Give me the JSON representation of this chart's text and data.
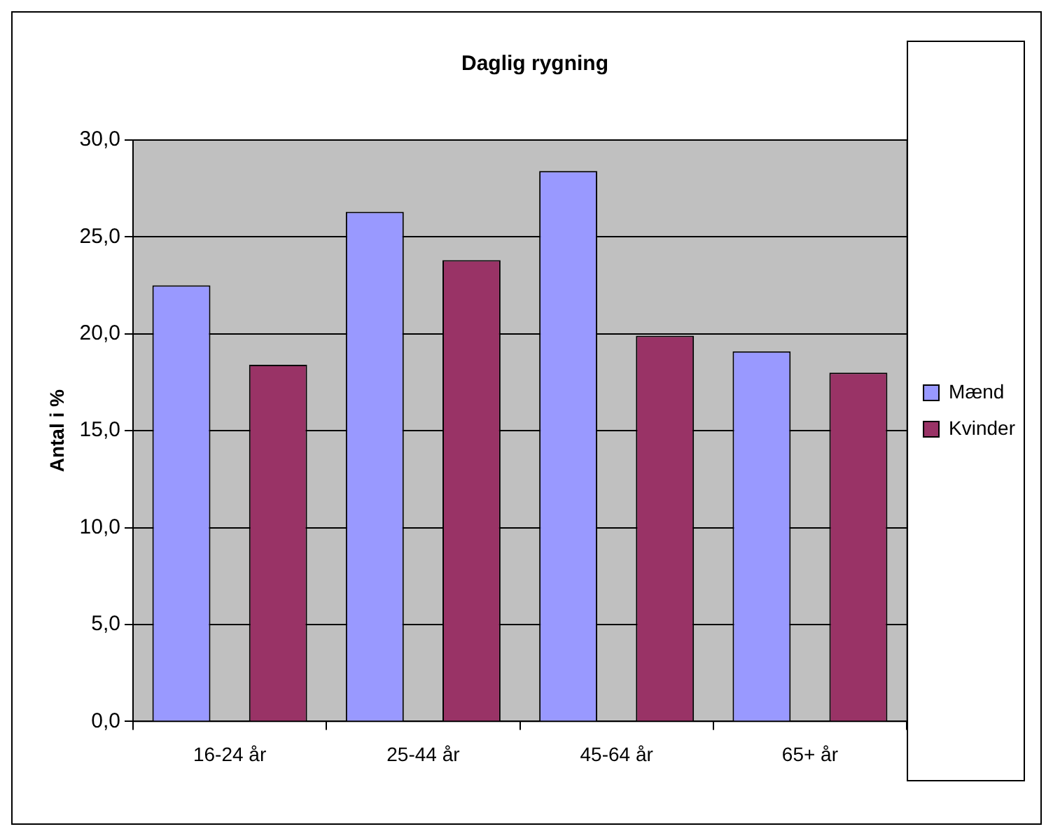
{
  "chart_data": {
    "type": "bar",
    "title": "Daglig rygning",
    "ylabel": "Antal i %",
    "categories": [
      "16-24 år",
      "25-44 år",
      "45-64 år",
      "65+ år"
    ],
    "series": [
      {
        "name": "Mænd",
        "color": "#9999ff",
        "values": [
          22.5,
          26.3,
          28.4,
          19.1
        ]
      },
      {
        "name": "Kvinder",
        "color": "#993366",
        "values": [
          18.4,
          23.8,
          19.9,
          18.0
        ]
      }
    ],
    "ylim": [
      0,
      30
    ],
    "yticks": [
      {
        "value": 0,
        "label": "0,0"
      },
      {
        "value": 5,
        "label": "5,0"
      },
      {
        "value": 10,
        "label": "10,0"
      },
      {
        "value": 15,
        "label": "15,0"
      },
      {
        "value": 20,
        "label": "20,0"
      },
      {
        "value": 25,
        "label": "25,0"
      },
      {
        "value": 30,
        "label": "30,0"
      }
    ],
    "grid": "y",
    "legend": "right"
  }
}
